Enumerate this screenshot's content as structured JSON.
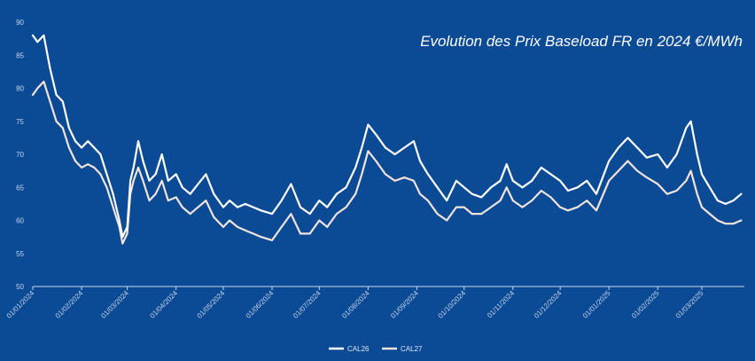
{
  "chart_data": {
    "type": "line",
    "title": "Evolution des Prix Baseload FR en 2024 €/MWh",
    "xlabel": "",
    "ylabel": "",
    "ylim": [
      50,
      90
    ],
    "yticks": [
      50,
      55,
      60,
      65,
      70,
      75,
      80,
      85,
      90
    ],
    "xticks": [
      "01/01/2024",
      "01/02/2024",
      "01/03/2024",
      "01/04/2024",
      "01/05/2024",
      "01/06/2024",
      "01/07/2024",
      "01/08/2024",
      "01/09/2024",
      "01/10/2024",
      "01/11/2024",
      "01/12/2024",
      "01/01/2025",
      "01/02/2025",
      "01/03/2025"
    ],
    "grid": false,
    "legend_position": "bottom-center",
    "colors": {
      "background": "#0b4a94",
      "CAL26": "#ffffff",
      "CAL27": "#f2e3dc",
      "axis": "#c9d6ea"
    },
    "series": [
      {
        "name": "CAL26",
        "points": [
          [
            "01/01/2024",
            88
          ],
          [
            "04/01/2024",
            87
          ],
          [
            "08/01/2024",
            88
          ],
          [
            "12/01/2024",
            83
          ],
          [
            "16/01/2024",
            79
          ],
          [
            "20/01/2024",
            78
          ],
          [
            "24/01/2024",
            74
          ],
          [
            "28/01/2024",
            72
          ],
          [
            "01/02/2024",
            71
          ],
          [
            "05/02/2024",
            72
          ],
          [
            "09/02/2024",
            71
          ],
          [
            "13/02/2024",
            70
          ],
          [
            "17/02/2024",
            67
          ],
          [
            "21/02/2024",
            64
          ],
          [
            "25/02/2024",
            60
          ],
          [
            "27/02/2024",
            57.5
          ],
          [
            "01/03/2024",
            59
          ],
          [
            "03/03/2024",
            66
          ],
          [
            "05/03/2024",
            68
          ],
          [
            "08/03/2024",
            72
          ],
          [
            "11/03/2024",
            69
          ],
          [
            "15/03/2024",
            66
          ],
          [
            "19/03/2024",
            67
          ],
          [
            "23/03/2024",
            70
          ],
          [
            "27/03/2024",
            66
          ],
          [
            "01/04/2024",
            67
          ],
          [
            "05/04/2024",
            65
          ],
          [
            "10/04/2024",
            64
          ],
          [
            "15/04/2024",
            65.5
          ],
          [
            "20/04/2024",
            67
          ],
          [
            "25/04/2024",
            64
          ],
          [
            "01/05/2024",
            62
          ],
          [
            "05/05/2024",
            63
          ],
          [
            "10/05/2024",
            62
          ],
          [
            "15/05/2024",
            62.5
          ],
          [
            "20/05/2024",
            62
          ],
          [
            "25/05/2024",
            61.5
          ],
          [
            "01/06/2024",
            61
          ],
          [
            "07/06/2024",
            63
          ],
          [
            "13/06/2024",
            65.5
          ],
          [
            "19/06/2024",
            62
          ],
          [
            "25/06/2024",
            61
          ],
          [
            "01/07/2024",
            63
          ],
          [
            "06/07/2024",
            62
          ],
          [
            "12/07/2024",
            64
          ],
          [
            "18/07/2024",
            65
          ],
          [
            "24/07/2024",
            68
          ],
          [
            "28/07/2024",
            71
          ],
          [
            "01/08/2024",
            74.5
          ],
          [
            "06/08/2024",
            73
          ],
          [
            "12/08/2024",
            71
          ],
          [
            "18/08/2024",
            70
          ],
          [
            "24/08/2024",
            71
          ],
          [
            "30/08/2024",
            72
          ],
          [
            "03/09/2024",
            69
          ],
          [
            "08/09/2024",
            67
          ],
          [
            "14/09/2024",
            65
          ],
          [
            "20/09/2024",
            63
          ],
          [
            "26/09/2024",
            66
          ],
          [
            "01/10/2024",
            65
          ],
          [
            "06/10/2024",
            64
          ],
          [
            "12/10/2024",
            63.5
          ],
          [
            "18/10/2024",
            65
          ],
          [
            "24/10/2024",
            66
          ],
          [
            "28/10/2024",
            68.5
          ],
          [
            "01/11/2024",
            66
          ],
          [
            "07/11/2024",
            65
          ],
          [
            "13/11/2024",
            66
          ],
          [
            "19/11/2024",
            68
          ],
          [
            "25/11/2024",
            67
          ],
          [
            "01/12/2024",
            66
          ],
          [
            "06/12/2024",
            64.5
          ],
          [
            "12/12/2024",
            65
          ],
          [
            "18/12/2024",
            66
          ],
          [
            "24/12/2024",
            64
          ],
          [
            "01/01/2025",
            69
          ],
          [
            "07/01/2025",
            71
          ],
          [
            "13/01/2025",
            72.5
          ],
          [
            "19/01/2025",
            71
          ],
          [
            "25/01/2025",
            69.5
          ],
          [
            "01/02/2025",
            70
          ],
          [
            "07/02/2025",
            68
          ],
          [
            "13/02/2025",
            70
          ],
          [
            "19/02/2025",
            74
          ],
          [
            "22/02/2025",
            75
          ],
          [
            "26/02/2025",
            70
          ],
          [
            "01/03/2025",
            67
          ],
          [
            "06/03/2025",
            65
          ],
          [
            "11/03/2025",
            63
          ],
          [
            "16/03/2025",
            62.5
          ],
          [
            "21/03/2025",
            63
          ],
          [
            "26/03/2025",
            64
          ]
        ]
      },
      {
        "name": "CAL27",
        "points": [
          [
            "01/01/2024",
            79
          ],
          [
            "04/01/2024",
            80
          ],
          [
            "08/01/2024",
            81
          ],
          [
            "12/01/2024",
            78
          ],
          [
            "16/01/2024",
            75
          ],
          [
            "20/01/2024",
            74
          ],
          [
            "24/01/2024",
            71
          ],
          [
            "28/01/2024",
            69
          ],
          [
            "01/02/2024",
            68
          ],
          [
            "05/02/2024",
            68.5
          ],
          [
            "09/02/2024",
            68
          ],
          [
            "13/02/2024",
            67
          ],
          [
            "17/02/2024",
            65
          ],
          [
            "21/02/2024",
            62
          ],
          [
            "25/02/2024",
            59
          ],
          [
            "27/02/2024",
            56.5
          ],
          [
            "01/03/2024",
            58
          ],
          [
            "03/03/2024",
            64
          ],
          [
            "05/03/2024",
            66
          ],
          [
            "08/03/2024",
            68
          ],
          [
            "11/03/2024",
            66
          ],
          [
            "15/03/2024",
            63
          ],
          [
            "19/03/2024",
            64
          ],
          [
            "23/03/2024",
            66
          ],
          [
            "27/03/2024",
            63
          ],
          [
            "01/04/2024",
            63.5
          ],
          [
            "05/04/2024",
            62
          ],
          [
            "10/04/2024",
            61
          ],
          [
            "15/04/2024",
            62
          ],
          [
            "20/04/2024",
            63
          ],
          [
            "25/04/2024",
            60.5
          ],
          [
            "01/05/2024",
            59
          ],
          [
            "05/05/2024",
            60
          ],
          [
            "10/05/2024",
            59
          ],
          [
            "15/05/2024",
            58.5
          ],
          [
            "20/05/2024",
            58
          ],
          [
            "25/05/2024",
            57.5
          ],
          [
            "01/06/2024",
            57
          ],
          [
            "07/06/2024",
            59
          ],
          [
            "13/06/2024",
            61
          ],
          [
            "19/06/2024",
            58
          ],
          [
            "25/06/2024",
            58
          ],
          [
            "01/07/2024",
            60
          ],
          [
            "06/07/2024",
            59
          ],
          [
            "12/07/2024",
            61
          ],
          [
            "18/07/2024",
            62
          ],
          [
            "24/07/2024",
            64
          ],
          [
            "28/07/2024",
            67
          ],
          [
            "01/08/2024",
            70.5
          ],
          [
            "06/08/2024",
            69
          ],
          [
            "12/08/2024",
            67
          ],
          [
            "18/08/2024",
            66
          ],
          [
            "24/08/2024",
            66.5
          ],
          [
            "30/08/2024",
            66
          ],
          [
            "03/09/2024",
            64
          ],
          [
            "08/09/2024",
            63
          ],
          [
            "14/09/2024",
            61
          ],
          [
            "20/09/2024",
            60
          ],
          [
            "26/09/2024",
            62
          ],
          [
            "01/10/2024",
            62
          ],
          [
            "06/10/2024",
            61
          ],
          [
            "12/10/2024",
            61
          ],
          [
            "18/10/2024",
            62
          ],
          [
            "24/10/2024",
            63
          ],
          [
            "28/10/2024",
            65
          ],
          [
            "01/11/2024",
            63
          ],
          [
            "07/11/2024",
            62
          ],
          [
            "13/11/2024",
            63
          ],
          [
            "19/11/2024",
            64.5
          ],
          [
            "25/11/2024",
            63.5
          ],
          [
            "01/12/2024",
            62
          ],
          [
            "06/12/2024",
            61.5
          ],
          [
            "12/12/2024",
            62
          ],
          [
            "18/12/2024",
            63
          ],
          [
            "24/12/2024",
            61.5
          ],
          [
            "01/01/2025",
            66
          ],
          [
            "07/01/2025",
            67.5
          ],
          [
            "13/01/2025",
            69
          ],
          [
            "19/01/2025",
            67.5
          ],
          [
            "25/01/2025",
            66.5
          ],
          [
            "01/02/2025",
            65.5
          ],
          [
            "07/02/2025",
            64
          ],
          [
            "13/02/2025",
            64.5
          ],
          [
            "19/02/2025",
            66
          ],
          [
            "22/02/2025",
            67.5
          ],
          [
            "26/02/2025",
            64
          ],
          [
            "01/03/2025",
            62
          ],
          [
            "06/03/2025",
            61
          ],
          [
            "11/03/2025",
            60
          ],
          [
            "16/03/2025",
            59.5
          ],
          [
            "21/03/2025",
            59.5
          ],
          [
            "26/03/2025",
            60
          ]
        ]
      }
    ]
  }
}
